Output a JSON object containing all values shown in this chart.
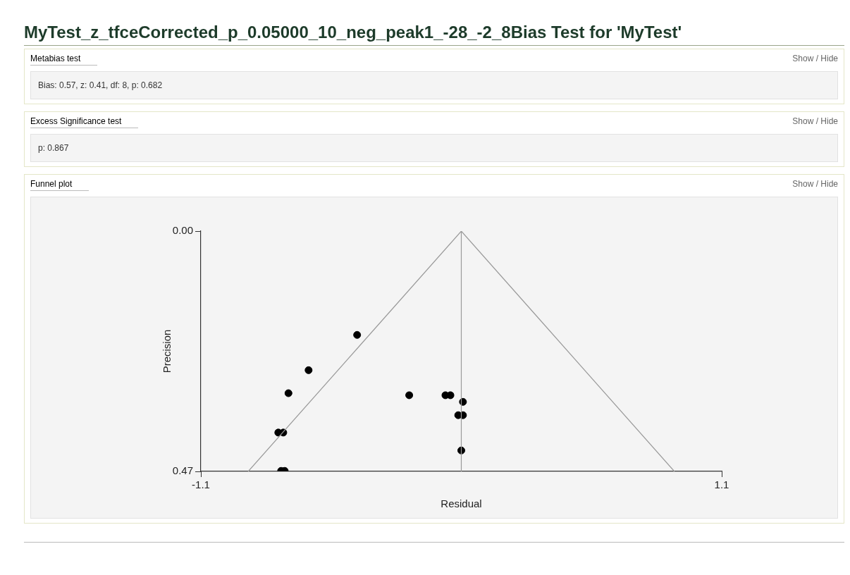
{
  "chart_data": {
    "type": "scatter",
    "title": "MyTest_z_tfceCorrected_p_0.05000_10_neg_peak1_-28_-2_8Bias Test for 'MyTest'",
    "xlabel": "Residual",
    "ylabel": "Precision",
    "annotations": [
      "Metabias test",
      "Show / Hide",
      "Bias: 0.57, z: 0.41, df: 8, p: 0.682",
      "Excess Significance test",
      "Show / Hide",
      "p: 0.867",
      "Funnel plot",
      "Show / Hide"
    ],
    "xlim": [
      -1.1,
      1.1
    ],
    "xticks": [
      -1.1,
      1.1
    ],
    "ylim": [
      0.47,
      0
    ],
    "yticks": [
      {
        "value": 0,
        "label": "0.00"
      },
      {
        "value": 0.47,
        "label": "0.47"
      }
    ],
    "grid": false,
    "legend": false,
    "marker": "circle",
    "ref_lines": [
      {
        "axis": "x",
        "value": 0,
        "color": "#999999"
      }
    ],
    "series": [
      {
        "type": "line",
        "color": "#999999",
        "marker": "none",
        "line_style": "solid",
        "x": [
          -0.9,
          0,
          0.9
        ],
        "values": [
          0.47,
          0,
          0.47
        ]
      },
      {
        "type": "scatter",
        "color": "#000000",
        "x": [
          -0.44,
          -0.645,
          -0.73,
          -0.22,
          -0.067,
          -0.046,
          0.007,
          -0.013,
          0.007,
          -0.773,
          -0.752,
          0.0,
          -0.761,
          -0.746
        ],
        "values": [
          0.203,
          0.272,
          0.317,
          0.321,
          0.321,
          0.321,
          0.334,
          0.36,
          0.36,
          0.394,
          0.394,
          0.429,
          0.469,
          0.469
        ]
      }
    ]
  }
}
